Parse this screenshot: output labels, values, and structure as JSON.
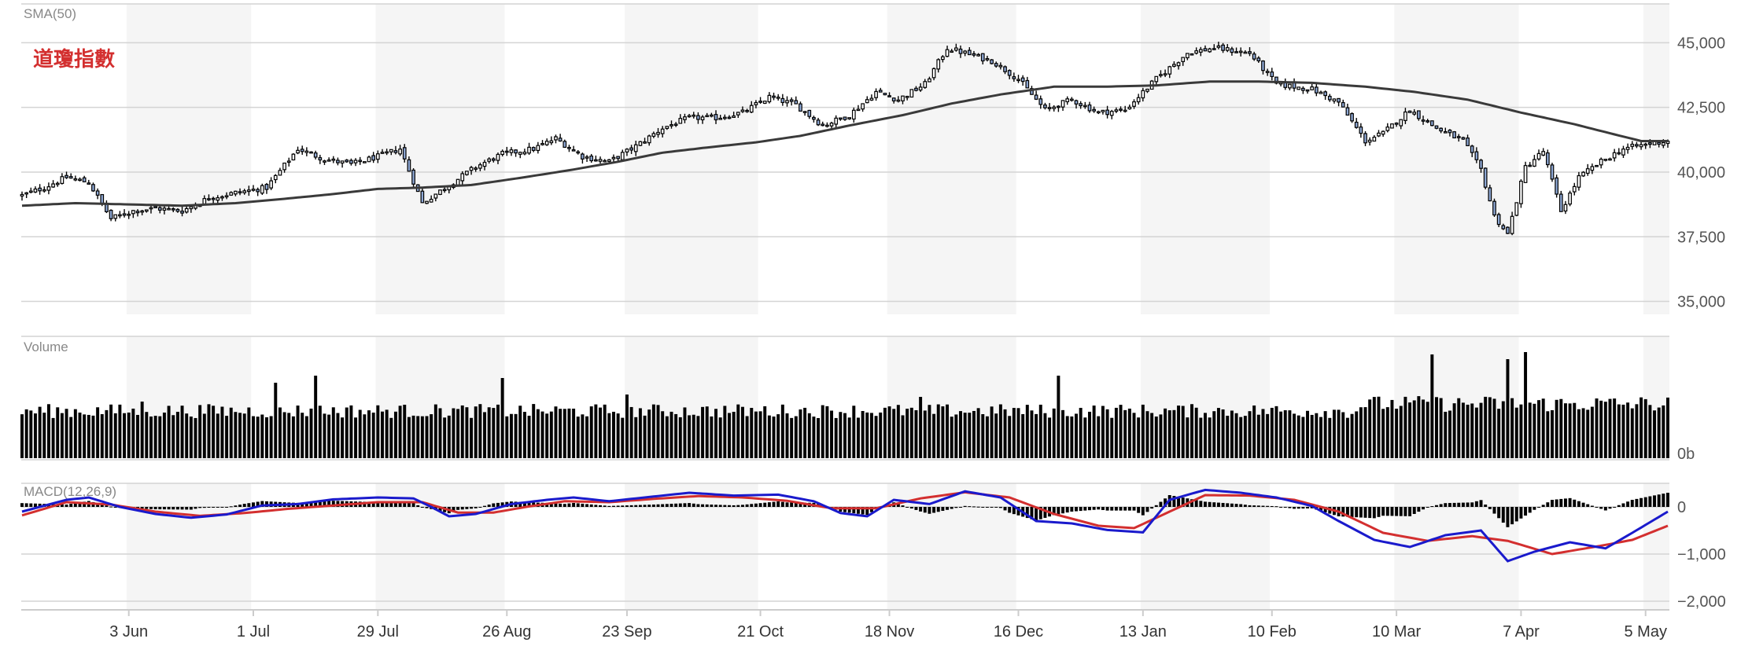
{
  "chart_data": [
    {
      "type": "candlestick",
      "panel": "price",
      "label": "SMA(50)",
      "title": "道瓊指數",
      "ylim": [
        34500,
        46500
      ],
      "yticks": [
        "45,000",
        "42,500",
        "40,000",
        "37,500",
        "35,000"
      ],
      "ytick_values": [
        45000,
        42500,
        40000,
        37500,
        35000
      ],
      "sma_name": "SMA(50)",
      "sma_points": [
        [
          0,
          38700
        ],
        [
          12,
          38800
        ],
        [
          24,
          38750
        ],
        [
          36,
          38700
        ],
        [
          48,
          38800
        ],
        [
          58,
          38950
        ],
        [
          70,
          39150
        ],
        [
          80,
          39350
        ],
        [
          90,
          39400
        ],
        [
          101,
          39500
        ],
        [
          113,
          39800
        ],
        [
          124,
          40100
        ],
        [
          134,
          40400
        ],
        [
          144,
          40750
        ],
        [
          154,
          40950
        ],
        [
          165,
          41150
        ],
        [
          175,
          41400
        ],
        [
          186,
          41800
        ],
        [
          198,
          42200
        ],
        [
          209,
          42650
        ],
        [
          220,
          43000
        ],
        [
          232,
          43300
        ],
        [
          243,
          43300
        ],
        [
          255,
          43350
        ],
        [
          267,
          43500
        ],
        [
          278,
          43500
        ],
        [
          290,
          43450
        ],
        [
          302,
          43300
        ],
        [
          313,
          43100
        ],
        [
          325,
          42800
        ],
        [
          337,
          42300
        ],
        [
          349,
          41850
        ],
        [
          357,
          41500
        ],
        [
          364,
          41200
        ],
        [
          370,
          41200
        ]
      ],
      "anchor_closes": [
        [
          0,
          39100
        ],
        [
          5,
          39400
        ],
        [
          10,
          39800
        ],
        [
          15,
          39600
        ],
        [
          20,
          38200
        ],
        [
          25,
          38500
        ],
        [
          30,
          38600
        ],
        [
          36,
          38500
        ],
        [
          42,
          39000
        ],
        [
          48,
          39200
        ],
        [
          55,
          39400
        ],
        [
          62,
          40900
        ],
        [
          68,
          40500
        ],
        [
          74,
          40300
        ],
        [
          80,
          40600
        ],
        [
          85,
          40900
        ],
        [
          90,
          38800
        ],
        [
          96,
          39500
        ],
        [
          102,
          40200
        ],
        [
          108,
          40700
        ],
        [
          115,
          40900
        ],
        [
          120,
          41300
        ],
        [
          126,
          40600
        ],
        [
          132,
          40400
        ],
        [
          138,
          41000
        ],
        [
          144,
          41700
        ],
        [
          150,
          42100
        ],
        [
          156,
          42100
        ],
        [
          162,
          42300
        ],
        [
          168,
          42900
        ],
        [
          174,
          42600
        ],
        [
          180,
          41800
        ],
        [
          186,
          42200
        ],
        [
          192,
          43100
        ],
        [
          197,
          42800
        ],
        [
          203,
          43400
        ],
        [
          208,
          44800
        ],
        [
          212,
          44600
        ],
        [
          218,
          44300
        ],
        [
          224,
          43600
        ],
        [
          230,
          42400
        ],
        [
          236,
          42800
        ],
        [
          242,
          42300
        ],
        [
          248,
          42400
        ],
        [
          255,
          43600
        ],
        [
          262,
          44600
        ],
        [
          268,
          44800
        ],
        [
          276,
          44600
        ],
        [
          282,
          43400
        ],
        [
          290,
          43200
        ],
        [
          296,
          42700
        ],
        [
          302,
          41200
        ],
        [
          306,
          41500
        ],
        [
          312,
          42400
        ],
        [
          318,
          41700
        ],
        [
          324,
          41200
        ],
        [
          328,
          40100
        ],
        [
          331,
          38300
        ],
        [
          334,
          37600
        ],
        [
          338,
          40200
        ],
        [
          342,
          40800
        ],
        [
          346,
          38500
        ],
        [
          350,
          39800
        ],
        [
          355,
          40400
        ],
        [
          360,
          40900
        ],
        [
          366,
          41100
        ],
        [
          370,
          41200
        ]
      ],
      "volume_spikes": [
        [
          27,
          1.2
        ],
        [
          57,
          1.6
        ],
        [
          66,
          1.75
        ],
        [
          108,
          1.7
        ],
        [
          136,
          1.35
        ],
        [
          202,
          1.3
        ],
        [
          233,
          1.75
        ],
        [
          317,
          2.2
        ],
        [
          334,
          2.1
        ],
        [
          338,
          2.25
        ]
      ],
      "volume_base": 1.0,
      "dates_tick_positions": [
        24,
        52,
        80,
        109,
        136,
        166,
        195,
        224,
        252,
        281,
        309,
        337,
        365
      ]
    },
    {
      "type": "bar",
      "panel": "volume",
      "label": "Volume",
      "yticks": [
        "0b"
      ]
    },
    {
      "type": "line",
      "panel": "macd",
      "label": "MACD(12,26,9)",
      "ylim": [
        -2200,
        500
      ],
      "yticks": [
        "0",
        "−1,000",
        "−2,000"
      ],
      "ytick_values": [
        0,
        -1000,
        -2000
      ],
      "series": [
        {
          "key": "macd",
          "color": "#1a1acc",
          "values": [
            [
              0,
              -100
            ],
            [
              10,
              150
            ],
            [
              15,
              200
            ],
            [
              22,
              0
            ],
            [
              30,
              -150
            ],
            [
              38,
              -230
            ],
            [
              46,
              -160
            ],
            [
              54,
              30
            ],
            [
              62,
              60
            ],
            [
              70,
              160
            ],
            [
              80,
              200
            ],
            [
              88,
              180
            ],
            [
              92,
              0
            ],
            [
              96,
              -200
            ],
            [
              102,
              -150
            ],
            [
              110,
              60
            ],
            [
              118,
              150
            ],
            [
              124,
              200
            ],
            [
              132,
              120
            ],
            [
              140,
              200
            ],
            [
              150,
              300
            ],
            [
              160,
              240
            ],
            [
              170,
              260
            ],
            [
              178,
              120
            ],
            [
              184,
              -130
            ],
            [
              190,
              -200
            ],
            [
              196,
              150
            ],
            [
              204,
              60
            ],
            [
              212,
              330
            ],
            [
              220,
              200
            ],
            [
              228,
              -300
            ],
            [
              236,
              -350
            ],
            [
              244,
              -490
            ],
            [
              252,
              -540
            ],
            [
              258,
              150
            ],
            [
              266,
              360
            ],
            [
              274,
              300
            ],
            [
              282,
              200
            ],
            [
              290,
              20
            ],
            [
              296,
              -300
            ],
            [
              304,
              -700
            ],
            [
              312,
              -850
            ],
            [
              320,
              -600
            ],
            [
              328,
              -500
            ],
            [
              334,
              -1150
            ],
            [
              340,
              -950
            ],
            [
              348,
              -750
            ],
            [
              356,
              -880
            ],
            [
              362,
              -550
            ],
            [
              370,
              -100
            ]
          ]
        },
        {
          "key": "signal",
          "color": "#d32f2f",
          "values": [
            [
              0,
              -180
            ],
            [
              10,
              100
            ],
            [
              20,
              50
            ],
            [
              30,
              -100
            ],
            [
              40,
              -190
            ],
            [
              50,
              -130
            ],
            [
              60,
              -40
            ],
            [
              70,
              30
            ],
            [
              80,
              100
            ],
            [
              90,
              100
            ],
            [
              98,
              -120
            ],
            [
              106,
              -120
            ],
            [
              114,
              10
            ],
            [
              122,
              120
            ],
            [
              132,
              100
            ],
            [
              142,
              170
            ],
            [
              152,
              230
            ],
            [
              162,
              200
            ],
            [
              172,
              130
            ],
            [
              182,
              -30
            ],
            [
              192,
              -30
            ],
            [
              202,
              180
            ],
            [
              212,
              310
            ],
            [
              222,
              200
            ],
            [
              232,
              -150
            ],
            [
              242,
              -400
            ],
            [
              250,
              -450
            ],
            [
              258,
              -100
            ],
            [
              266,
              250
            ],
            [
              276,
              240
            ],
            [
              286,
              150
            ],
            [
              296,
              -100
            ],
            [
              306,
              -550
            ],
            [
              316,
              -720
            ],
            [
              326,
              -620
            ],
            [
              334,
              -720
            ],
            [
              344,
              -1000
            ],
            [
              354,
              -840
            ],
            [
              362,
              -700
            ],
            [
              370,
              -400
            ]
          ]
        }
      ]
    }
  ],
  "xaxis": {
    "labels": [
      "3 Jun",
      "1 Jul",
      "29 Jul",
      "26 Aug",
      "23 Sep",
      "21 Oct",
      "18 Nov",
      "16 Dec",
      "13 Jan",
      "10 Feb",
      "10 Mar",
      "7 Apr",
      "5 May"
    ]
  },
  "colors": {
    "up_fill": "#ffffff",
    "down_fill": "#8fa9d6",
    "candle_stroke": "#000000",
    "sma": "#3a3a3a",
    "volume": "#000000",
    "band": "#f5f5f5",
    "grid": "#d4d4d4",
    "title": "#d32f2f"
  }
}
